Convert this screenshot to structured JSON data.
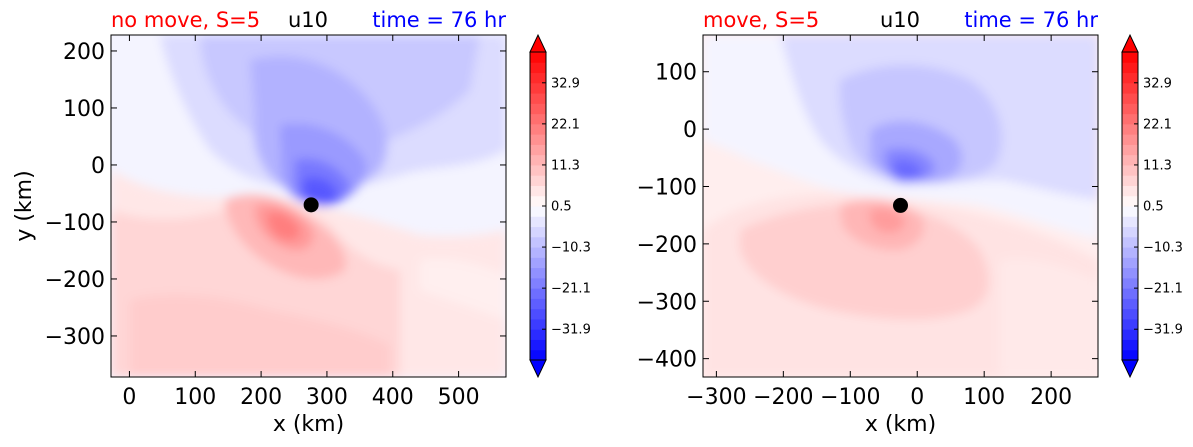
{
  "chart_data": [
    {
      "type": "heatmap",
      "title_left": "no move, S=5",
      "title_center": "u10",
      "title_right": "time = 76 hr",
      "title_left_color": "#ff0000",
      "title_center_color": "#000000",
      "title_right_color": "#0000ff",
      "xlabel": "x (km)",
      "ylabel": "y (km)",
      "xlim": [
        -28,
        572
      ],
      "ylim": [
        -372,
        228
      ],
      "xticks": [
        0,
        100,
        200,
        300,
        400,
        500
      ],
      "xtick_labels": [
        "0",
        "100",
        "200",
        "300",
        "400",
        "500"
      ],
      "yticks": [
        200,
        100,
        0,
        -100,
        -200,
        -300
      ],
      "ytick_labels": [
        "200",
        "100",
        "0",
        "−100",
        "−200",
        "−300"
      ],
      "center_marker": {
        "x": 276,
        "y": -70
      },
      "colorbar": {
        "ticks": [
          32.9,
          22.1,
          11.3,
          0.5,
          -10.3,
          -21.1,
          -31.9
        ],
        "tick_labels": [
          "32.9",
          "22.1",
          "11.3",
          "0.5",
          "−10.3",
          "−21.1",
          "−31.9"
        ],
        "range": [
          -40,
          41
        ],
        "extend": "both",
        "cmap": "bwr"
      },
      "field": "u10",
      "colors": {
        "blue": "#0000ff",
        "red": "#ff0000",
        "white": "#ffffff"
      }
    },
    {
      "type": "heatmap",
      "title_left": "move, S=5",
      "title_center": "u10",
      "title_right": "time = 76 hr",
      "title_left_color": "#ff0000",
      "title_center_color": "#000000",
      "title_right_color": "#0000ff",
      "xlabel": "x (km)",
      "ylabel": "",
      "xlim": [
        -320,
        270
      ],
      "ylim": [
        -432,
        164
      ],
      "xticks": [
        -300,
        -200,
        -100,
        0,
        100,
        200
      ],
      "xtick_labels": [
        "−300",
        "−200",
        "−100",
        "0",
        "100",
        "200"
      ],
      "yticks": [
        100,
        0,
        -100,
        -200,
        -300,
        -400
      ],
      "ytick_labels": [
        "100",
        "0",
        "−100",
        "−200",
        "−300",
        "−400"
      ],
      "center_marker": {
        "x": -25,
        "y": -133
      },
      "colorbar": {
        "ticks": [
          32.9,
          22.1,
          11.3,
          0.5,
          -10.3,
          -21.1,
          -31.9
        ],
        "tick_labels": [
          "32.9",
          "22.1",
          "11.3",
          "0.5",
          "−10.3",
          "−21.1",
          "−31.9"
        ],
        "range": [
          -40,
          41
        ],
        "extend": "both",
        "cmap": "bwr"
      },
      "field": "u10",
      "colors": {
        "blue": "#0000ff",
        "red": "#ff0000",
        "white": "#ffffff"
      }
    }
  ]
}
